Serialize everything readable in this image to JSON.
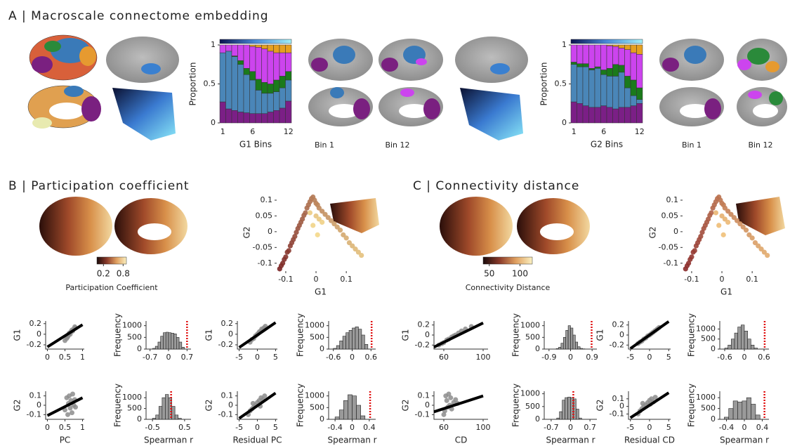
{
  "panels": [
    "A | Macroscale connectome embedding",
    "B | Participation coefficient",
    "C | Connectivity distance"
  ],
  "chart_data": [
    {
      "type": "bar",
      "ylabel": "Proportion",
      "xlabel": "G1 Bins",
      "annotations": [
        "Bin 1",
        "Bin 12"
      ],
      "categories": [
        "1",
        null,
        null,
        null,
        null,
        "6",
        null,
        null,
        null,
        null,
        null,
        "12"
      ],
      "ylim": [
        0,
        1
      ],
      "yticks": [
        0,
        0.5,
        1
      ],
      "series": [
        {
          "color": "#7b1f86",
          "values": [
            0.27,
            0.18,
            0.16,
            0.14,
            0.13,
            0.12,
            0.12,
            0.12,
            0.14,
            0.16,
            0.19,
            0.28
          ]
        },
        {
          "color": "#4a86b8",
          "values": [
            0.63,
            0.74,
            0.69,
            0.61,
            0.49,
            0.43,
            0.3,
            0.26,
            0.24,
            0.24,
            0.26,
            0.27
          ]
        },
        {
          "color": "#1b7a1b",
          "values": [
            0,
            0,
            0.01,
            0.05,
            0.08,
            0.11,
            0.14,
            0.14,
            0.12,
            0.15,
            0.15,
            0.11
          ]
        },
        {
          "color": "#cc44ee",
          "values": [
            0.1,
            0.08,
            0.14,
            0.2,
            0.3,
            0.32,
            0.41,
            0.43,
            0.42,
            0.35,
            0.3,
            0.24
          ]
        },
        {
          "color": "#e6a020",
          "values": [
            0,
            0,
            0,
            0,
            0,
            0.02,
            0.03,
            0.05,
            0.08,
            0.1,
            0.1,
            0.1
          ]
        }
      ]
    },
    {
      "type": "bar",
      "ylabel": "Proportion",
      "xlabel": "G2 Bins",
      "annotations": [
        "Bin 1",
        "Bin 12"
      ],
      "categories": [
        "1",
        null,
        null,
        null,
        null,
        "6",
        null,
        null,
        null,
        null,
        null,
        "12"
      ],
      "ylim": [
        0,
        1
      ],
      "yticks": [
        0,
        0.5,
        1
      ],
      "series": [
        {
          "color": "#7b1f86",
          "values": [
            0.27,
            0.25,
            0.22,
            0.2,
            0.2,
            0.22,
            0.2,
            0.18,
            0.2,
            0.2,
            0.22,
            0.25
          ]
        },
        {
          "color": "#4a86b8",
          "values": [
            0.48,
            0.47,
            0.5,
            0.48,
            0.5,
            0.4,
            0.4,
            0.42,
            0.45,
            0.25,
            0.13,
            0.05
          ]
        },
        {
          "color": "#1b7a1b",
          "values": [
            0.03,
            0.04,
            0.04,
            0.02,
            0.02,
            0.06,
            0.1,
            0.15,
            0.09,
            0.15,
            0.2,
            0.15
          ]
        },
        {
          "color": "#cc44ee",
          "values": [
            0.22,
            0.24,
            0.24,
            0.3,
            0.28,
            0.32,
            0.29,
            0.23,
            0.22,
            0.34,
            0.35,
            0.43
          ]
        },
        {
          "color": "#e6a020",
          "values": [
            0,
            0,
            0,
            0,
            0,
            0,
            0.01,
            0.02,
            0.04,
            0.06,
            0.1,
            0.12
          ]
        }
      ]
    },
    {
      "type": "scatter",
      "xlabel": "G1",
      "ylabel": "G2",
      "colors": [
        "#7a2424",
        "#f4d88a"
      ],
      "xlim": [
        -0.13,
        0.16
      ],
      "ylim": [
        -0.125,
        0.12
      ],
      "xticks": [
        -0.1,
        0,
        0.1
      ],
      "yticks": [
        -0.1,
        -0.05,
        0,
        0.05,
        0.1
      ],
      "x": [
        -0.12,
        -0.115,
        -0.11,
        -0.105,
        -0.1,
        -0.095,
        -0.09,
        -0.085,
        -0.08,
        -0.075,
        -0.07,
        -0.065,
        -0.06,
        -0.055,
        -0.05,
        -0.045,
        -0.04,
        -0.035,
        -0.03,
        -0.025,
        -0.02,
        -0.015,
        -0.01,
        -0.005,
        0,
        0.005,
        0.01,
        0.02,
        0.03,
        0.04,
        0.05,
        0.06,
        0.07,
        0.08,
        0.09,
        0.1,
        0.11,
        0.12,
        0.13,
        0.14,
        0.15,
        0,
        0.01,
        -0.02,
        0.02,
        -0.01,
        0.005
      ],
      "y": [
        -0.118,
        -0.108,
        -0.1,
        -0.088,
        -0.08,
        -0.065,
        -0.06,
        -0.045,
        -0.035,
        -0.025,
        -0.015,
        -0.002,
        0.01,
        0.02,
        0.03,
        0.04,
        0.052,
        0.06,
        0.075,
        0.085,
        0.095,
        0.105,
        0.11,
        0.1,
        0.09,
        0.085,
        0.075,
        0.065,
        0.055,
        0.045,
        0.035,
        0.025,
        0.015,
        0.005,
        -0.01,
        -0.02,
        -0.035,
        -0.045,
        -0.055,
        -0.065,
        -0.075,
        0.05,
        0.04,
        0.06,
        0.03,
        0.02,
        -0.01
      ]
    },
    {
      "type": "scatter",
      "xlabel": "G1",
      "ylabel": "G2",
      "colors": [
        "#8a2a2a",
        "#f0c078"
      ],
      "xlim": [
        -0.13,
        0.16
      ],
      "ylim": [
        -0.125,
        0.12
      ],
      "xticks": [
        -0.1,
        0,
        0.1
      ],
      "yticks": [
        -0.1,
        -0.05,
        0,
        0.05,
        0.1
      ],
      "x": [
        -0.12,
        -0.115,
        -0.11,
        -0.105,
        -0.1,
        -0.095,
        -0.09,
        -0.085,
        -0.08,
        -0.075,
        -0.07,
        -0.065,
        -0.06,
        -0.055,
        -0.05,
        -0.045,
        -0.04,
        -0.035,
        -0.03,
        -0.025,
        -0.02,
        -0.015,
        -0.01,
        -0.005,
        0,
        0.005,
        0.01,
        0.02,
        0.03,
        0.04,
        0.05,
        0.06,
        0.07,
        0.08,
        0.09,
        0.1,
        0.11,
        0.12,
        0.13,
        0.14,
        0.15,
        0,
        0.01,
        -0.02,
        0.02,
        -0.01,
        0.005
      ],
      "y": [
        -0.118,
        -0.108,
        -0.1,
        -0.088,
        -0.08,
        -0.065,
        -0.06,
        -0.045,
        -0.035,
        -0.025,
        -0.015,
        -0.002,
        0.01,
        0.02,
        0.03,
        0.04,
        0.052,
        0.06,
        0.075,
        0.085,
        0.095,
        0.105,
        0.11,
        0.1,
        0.09,
        0.085,
        0.075,
        0.065,
        0.055,
        0.045,
        0.035,
        0.025,
        0.015,
        0.005,
        -0.01,
        -0.02,
        -0.035,
        -0.045,
        -0.055,
        -0.065,
        -0.075,
        0.05,
        0.04,
        0.06,
        0.03,
        0.02,
        -0.01
      ]
    },
    {
      "type": "scatter",
      "ylabel": "G1",
      "xlim": [
        -0.05,
        1.05
      ],
      "ylim": [
        -0.28,
        0.25
      ],
      "xticks": [
        0,
        0.5,
        1
      ],
      "yticks": [
        -0.2,
        0,
        0.2
      ],
      "x": [
        0.5,
        0.55,
        0.58,
        0.6,
        0.62,
        0.65,
        0.67,
        0.7,
        0.72,
        0.75,
        0.78,
        0.8
      ],
      "y": [
        -0.12,
        -0.08,
        -0.05,
        -0.02,
        0.02,
        0,
        0.05,
        0.08,
        0.06,
        0.1,
        0.14,
        0.12
      ],
      "line": {
        "x": [
          0,
          1
        ],
        "y": [
          -0.24,
          0.18
        ]
      }
    },
    {
      "type": "histogram",
      "ylabel": "Frequency",
      "xlim": [
        -0.85,
        0.85
      ],
      "ylim": [
        0,
        1200
      ],
      "xticks": [
        -0.7,
        0,
        0.7
      ],
      "yticks": [
        0,
        500,
        1000
      ],
      "bins": [
        -0.6,
        -0.5,
        -0.4,
        -0.3,
        -0.2,
        -0.1,
        0,
        0.1,
        0.2,
        0.3,
        0.4,
        0.5,
        0.6
      ],
      "values": [
        30,
        120,
        300,
        550,
        700,
        720,
        700,
        680,
        650,
        500,
        300,
        80
      ],
      "reference": 0.7
    },
    {
      "type": "scatter",
      "ylabel": "G1",
      "xlim": [
        -5.5,
        5.5
      ],
      "ylim": [
        -0.28,
        0.25
      ],
      "xticks": [
        -5,
        0,
        5
      ],
      "yticks": [
        -0.2,
        0,
        0.2
      ],
      "x": [
        -2,
        -1.5,
        -1,
        -0.5,
        0,
        0.3,
        0.6,
        1,
        1.2,
        1.5,
        1.8,
        2.2
      ],
      "y": [
        -0.15,
        -0.1,
        -0.08,
        -0.03,
        0,
        0.02,
        0.05,
        0.06,
        0.1,
        0.08,
        0.12,
        0.15
      ],
      "line": {
        "x": [
          -5,
          5
        ],
        "y": [
          -0.25,
          0.22
        ]
      }
    },
    {
      "type": "histogram",
      "ylabel": "Frequency",
      "xlim": [
        -0.75,
        0.75
      ],
      "ylim": [
        0,
        1200
      ],
      "xticks": [
        -0.6,
        0,
        0.6
      ],
      "yticks": [
        0,
        500,
        1000
      ],
      "bins": [
        -0.6,
        -0.5,
        -0.4,
        -0.3,
        -0.2,
        -0.1,
        0,
        0.1,
        0.2,
        0.3,
        0.4,
        0.5
      ],
      "values": [
        30,
        150,
        350,
        550,
        700,
        800,
        900,
        950,
        850,
        600,
        200
      ],
      "reference": 0.62
    },
    {
      "type": "scatter",
      "ylabel": "G2",
      "xlabel": "PC",
      "xlim": [
        -0.05,
        1.05
      ],
      "ylim": [
        -0.15,
        0.15
      ],
      "xticks": [
        0,
        0.5,
        1
      ],
      "yticks": [
        -0.1,
        0,
        0.1
      ],
      "x": [
        0.5,
        0.55,
        0.58,
        0.6,
        0.62,
        0.65,
        0.67,
        0.7,
        0.72,
        0.75,
        0.78,
        0.8
      ],
      "y": [
        -0.05,
        0.08,
        -0.1,
        0.02,
        0.1,
        -0.03,
        0.05,
        -0.08,
        0.12,
        0,
        0.06,
        -0.02
      ],
      "line": {
        "x": [
          0,
          1
        ],
        "y": [
          -0.11,
          0.08
        ]
      }
    },
    {
      "type": "histogram",
      "ylabel": "Frequency",
      "xlabel": "Spearman r",
      "xlim": [
        -0.7,
        0.7
      ],
      "ylim": [
        0,
        1300
      ],
      "xticks": [
        -0.5,
        0.5
      ],
      "yticks": [
        0,
        500,
        1000
      ],
      "bins": [
        -0.5,
        -0.4,
        -0.3,
        -0.2,
        -0.1,
        0,
        0.1,
        0.2,
        0.3,
        0.4
      ],
      "values": [
        50,
        200,
        600,
        1000,
        1150,
        1000,
        600,
        200,
        50
      ],
      "reference": 0.08
    },
    {
      "type": "scatter",
      "ylabel": "G2",
      "xlabel": "Residual PC",
      "xlim": [
        -5.5,
        5.5
      ],
      "ylim": [
        -0.15,
        0.15
      ],
      "xticks": [
        -5,
        0,
        5
      ],
      "yticks": [
        -0.1,
        0,
        0.1
      ],
      "x": [
        -2.5,
        -2,
        -1.5,
        -1,
        -0.5,
        0,
        0.5,
        1,
        1.5,
        2,
        -1.2,
        0.8
      ],
      "y": [
        -0.1,
        -0.06,
        -0.04,
        -0.02,
        0,
        0.03,
        0.05,
        0.08,
        0.06,
        0.1,
        0.02,
        -0.01
      ],
      "line": {
        "x": [
          -5,
          5
        ],
        "y": [
          -0.14,
          0.13
        ]
      }
    },
    {
      "type": "histogram",
      "ylabel": "Frequency",
      "xlabel": "Spearman r",
      "xlim": [
        -0.55,
        0.55
      ],
      "ylim": [
        0,
        1200
      ],
      "xticks": [
        -0.4,
        0,
        0.4
      ],
      "yticks": [
        0,
        500,
        1000
      ],
      "bins": [
        -0.4,
        -0.3,
        -0.2,
        -0.1,
        0,
        0.1,
        0.2,
        0.3
      ],
      "values": [
        100,
        400,
        800,
        1050,
        1000,
        600,
        150
      ],
      "reference": 0.42
    },
    {
      "type": "scatter",
      "ylabel": "G1",
      "xlim": [
        50,
        105
      ],
      "ylim": [
        -0.28,
        0.28
      ],
      "xticks": [
        60,
        100
      ],
      "yticks": [
        -0.2,
        0,
        0.2
      ],
      "x": [
        55,
        58,
        60,
        63,
        65,
        68,
        70,
        72,
        75,
        78,
        82,
        88
      ],
      "y": [
        -0.2,
        -0.17,
        -0.15,
        -0.1,
        -0.08,
        -0.04,
        -0.02,
        0,
        0.04,
        0.08,
        0.12,
        0.17
      ],
      "line": {
        "x": [
          50,
          100
        ],
        "y": [
          -0.24,
          0.24
        ]
      }
    },
    {
      "type": "histogram",
      "ylabel": "Frequency",
      "xlim": [
        -1.1,
        1.1
      ],
      "ylim": [
        0,
        1200
      ],
      "xticks": [
        -0.9,
        0,
        0.9
      ],
      "yticks": [
        0,
        500,
        1000
      ],
      "bins": [
        -0.6,
        -0.5,
        -0.4,
        -0.3,
        -0.2,
        -0.1,
        0,
        0.1,
        0.2,
        0.3,
        0.4,
        0.5,
        0.6
      ],
      "values": [
        20,
        80,
        250,
        500,
        800,
        1000,
        900,
        600,
        300,
        100,
        30,
        10
      ],
      "reference": 0.88
    },
    {
      "type": "scatter",
      "ylabel": "G1",
      "xlim": [
        -5.5,
        5.5
      ],
      "ylim": [
        -0.28,
        0.28
      ],
      "xticks": [
        -5,
        0,
        5
      ],
      "yticks": [
        -0.2,
        0,
        0.2
      ],
      "x": [
        -3,
        -2.5,
        -2,
        -1.5,
        -1,
        -0.5,
        0,
        0.5,
        1,
        1.5,
        2,
        2.5
      ],
      "y": [
        -0.17,
        -0.14,
        -0.12,
        -0.08,
        -0.06,
        -0.02,
        0,
        0.03,
        0.06,
        0.09,
        0.12,
        0.15
      ],
      "line": {
        "x": [
          -5,
          5
        ],
        "y": [
          -0.27,
          0.27
        ]
      }
    },
    {
      "type": "histogram",
      "ylabel": "Frequency",
      "xlim": [
        -0.75,
        0.75
      ],
      "ylim": [
        0,
        1400
      ],
      "xticks": [
        -0.6,
        0,
        0.6
      ],
      "yticks": [
        0,
        500,
        1000
      ],
      "bins": [
        -0.6,
        -0.5,
        -0.4,
        -0.3,
        -0.2,
        -0.1,
        0,
        0.1,
        0.2,
        0.3,
        0.4
      ],
      "values": [
        50,
        200,
        500,
        800,
        1100,
        1200,
        900,
        500,
        200,
        50
      ],
      "reference": 0.62
    },
    {
      "type": "scatter",
      "ylabel": "G2",
      "xlabel": "CD",
      "xlim": [
        50,
        105
      ],
      "ylim": [
        -0.15,
        0.15
      ],
      "xticks": [
        60,
        100
      ],
      "yticks": [
        -0.1,
        0,
        0.1
      ],
      "x": [
        60,
        61,
        62,
        63,
        64,
        65,
        66,
        67,
        68,
        70,
        72,
        74
      ],
      "y": [
        -0.1,
        -0.06,
        0.1,
        0.05,
        -0.02,
        0.12,
        0,
        0.08,
        -0.04,
        0.03,
        0.06,
        0.02
      ],
      "line": {
        "x": [
          50,
          100
        ],
        "y": [
          -0.07,
          0.1
        ]
      }
    },
    {
      "type": "histogram",
      "ylabel": "Frequency",
      "xlabel": "Spearman r",
      "xlim": [
        -0.95,
        0.95
      ],
      "ylim": [
        0,
        1100
      ],
      "xticks": [
        -0.7,
        0,
        0.7
      ],
      "yticks": [
        0,
        500,
        1000
      ],
      "bins": [
        -0.5,
        -0.4,
        -0.3,
        -0.2,
        -0.1,
        0,
        0.1,
        0.2,
        0.3,
        0.4
      ],
      "values": [
        50,
        300,
        750,
        850,
        870,
        850,
        800,
        400,
        50
      ],
      "reference": 0.1
    },
    {
      "type": "scatter",
      "ylabel": "G2",
      "xlabel": "Residual CD",
      "xlim": [
        -5.5,
        5.5
      ],
      "ylim": [
        -0.17,
        0.2
      ],
      "xticks": [
        -5,
        0,
        5
      ],
      "yticks": [
        -0.1,
        0,
        0.1
      ],
      "x": [
        -3,
        -2.5,
        -2,
        -1.5,
        -1,
        -0.5,
        0,
        0.5,
        1,
        1.5,
        -1.8,
        0.2
      ],
      "y": [
        -0.1,
        -0.06,
        -0.03,
        0,
        0.02,
        0.05,
        0.08,
        0.1,
        0.06,
        0.12,
        0.04,
        0.03
      ],
      "line": {
        "x": [
          -5,
          5
        ],
        "y": [
          -0.15,
          0.18
        ]
      }
    },
    {
      "type": "histogram",
      "ylabel": "Frequency",
      "xlabel": "Spearman r",
      "xlim": [
        -0.55,
        0.55
      ],
      "ylim": [
        0,
        1300
      ],
      "xticks": [
        -0.4,
        0,
        0.4
      ],
      "yticks": [
        0,
        500,
        1000
      ],
      "bins": [
        -0.45,
        -0.35,
        -0.25,
        -0.15,
        -0.05,
        0.05,
        0.15,
        0.25,
        0.35
      ],
      "values": [
        100,
        500,
        850,
        800,
        850,
        1000,
        700,
        200
      ],
      "reference": 0.45
    },
    {
      "type": "colorbar",
      "title": "Participation Coefficient",
      "xlim": [
        0,
        0.9
      ],
      "xticks": [
        0.2,
        0.8
      ],
      "colors": [
        "#1a0a0a",
        "#8a3a2a",
        "#e0a060",
        "#fbf0c0"
      ]
    },
    {
      "type": "colorbar",
      "title": "Connectivity Distance",
      "xlim": [
        40,
        120
      ],
      "xticks": [
        50,
        100
      ],
      "colors": [
        "#1a0a0a",
        "#8a3a2a",
        "#e0a060",
        "#fbf0c0"
      ]
    }
  ]
}
